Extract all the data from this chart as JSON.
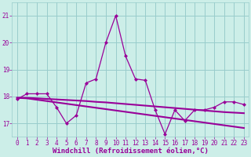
{
  "xlabel": "Windchill (Refroidissement éolien,°C)",
  "bg_color": "#cceee8",
  "line_color": "#990099",
  "grid_color": "#99cccc",
  "x_ticks": [
    0,
    1,
    2,
    3,
    4,
    5,
    6,
    7,
    8,
    9,
    10,
    11,
    12,
    13,
    14,
    15,
    16,
    17,
    18,
    19,
    20,
    21,
    22,
    23
  ],
  "ylim": [
    16.5,
    21.5
  ],
  "yticks": [
    17,
    18,
    19,
    20,
    21
  ],
  "line1": [
    17.9,
    18.1,
    18.1,
    18.1,
    17.6,
    17.0,
    17.3,
    18.5,
    18.65,
    20.0,
    21.0,
    19.5,
    18.65,
    18.6,
    17.5,
    16.6,
    17.5,
    17.1,
    17.5,
    17.5,
    17.6,
    17.8,
    17.8,
    17.7
  ],
  "line2": [
    17.95,
    17.95,
    17.93,
    17.91,
    17.89,
    17.87,
    17.85,
    17.83,
    17.8,
    17.78,
    17.75,
    17.72,
    17.69,
    17.66,
    17.63,
    17.6,
    17.57,
    17.54,
    17.51,
    17.48,
    17.45,
    17.42,
    17.4,
    17.38
  ],
  "line3": [
    17.95,
    17.93,
    17.88,
    17.83,
    17.78,
    17.73,
    17.68,
    17.63,
    17.58,
    17.53,
    17.48,
    17.43,
    17.38,
    17.33,
    17.28,
    17.23,
    17.18,
    17.13,
    17.08,
    17.03,
    16.98,
    16.93,
    16.88,
    16.83
  ],
  "tick_fontsize": 5.5,
  "label_fontsize": 6.5
}
